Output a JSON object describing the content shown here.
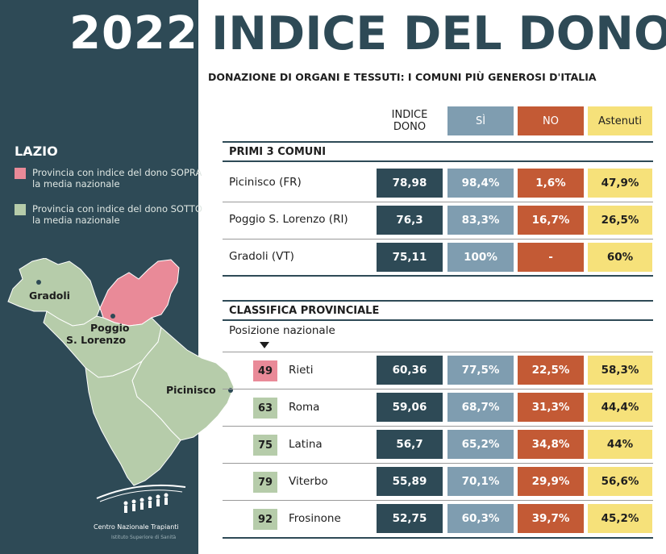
{
  "header": {
    "year": "2022",
    "title": "INDICE DEL DONO",
    "subtitle": "DONAZIONE DI ORGANI E TESSUTI: I COMUNI PIÙ GENEROSI D'ITALIA"
  },
  "sidebar": {
    "region": "LAZIO",
    "legend": [
      {
        "label": "Provincia con indice del dono SOPRA la media nazionale",
        "color": "#e98a98"
      },
      {
        "label": "Provincia con indice del dono SOTTO la media nazionale",
        "color": "#b6ccaa"
      }
    ],
    "map_labels": {
      "gradoli": "Gradoli",
      "poggio_line1": "Poggio",
      "poggio_line2": "S. Lorenzo",
      "picinisco": "Picinisco"
    },
    "logo": {
      "name": "Centro Nazionale Trapianti",
      "sub": "Istituto Superiore di Sanità"
    }
  },
  "table": {
    "columns": {
      "indice": "INDICE DONO",
      "si": "SÌ",
      "no": "NO",
      "astenuti": "Astenuti"
    },
    "comuni_title": "PRIMI 3 COMUNI",
    "comuni": [
      {
        "name": "Picinisco (FR)",
        "indice": "78,98",
        "si": "98,4%",
        "no": "1,6%",
        "astenuti": "47,9%"
      },
      {
        "name": "Poggio S. Lorenzo (RI)",
        "indice": "76,3",
        "si": "83,3%",
        "no": "16,7%",
        "astenuti": "26,5%"
      },
      {
        "name": "Gradoli (VT)",
        "indice": "75,11",
        "si": "100%",
        "no": "-",
        "astenuti": "60%"
      }
    ],
    "province_title": "CLASSIFICA PROVINCIALE",
    "position_label": "Posizione nazionale",
    "province": [
      {
        "pos": "49",
        "name": "Rieti",
        "indice": "60,36",
        "si": "77,5%",
        "no": "22,5%",
        "astenuti": "58,3%",
        "above": true
      },
      {
        "pos": "63",
        "name": "Roma",
        "indice": "59,06",
        "si": "68,7%",
        "no": "31,3%",
        "astenuti": "44,4%",
        "above": false
      },
      {
        "pos": "75",
        "name": "Latina",
        "indice": "56,7",
        "si": "65,2%",
        "no": "34,8%",
        "astenuti": "44%",
        "above": false
      },
      {
        "pos": "79",
        "name": "Viterbo",
        "indice": "55,89",
        "si": "70,1%",
        "no": "29,9%",
        "astenuti": "56,6%",
        "above": false
      },
      {
        "pos": "92",
        "name": "Frosinone",
        "indice": "52,75",
        "si": "60,3%",
        "no": "39,7%",
        "astenuti": "45,2%",
        "above": false
      }
    ]
  },
  "colors": {
    "dark": "#2e4a56",
    "si": "#7f9db0",
    "no": "#c35a35",
    "astenuti": "#f6e17a",
    "above": "#e98a98",
    "below": "#b6ccaa"
  }
}
